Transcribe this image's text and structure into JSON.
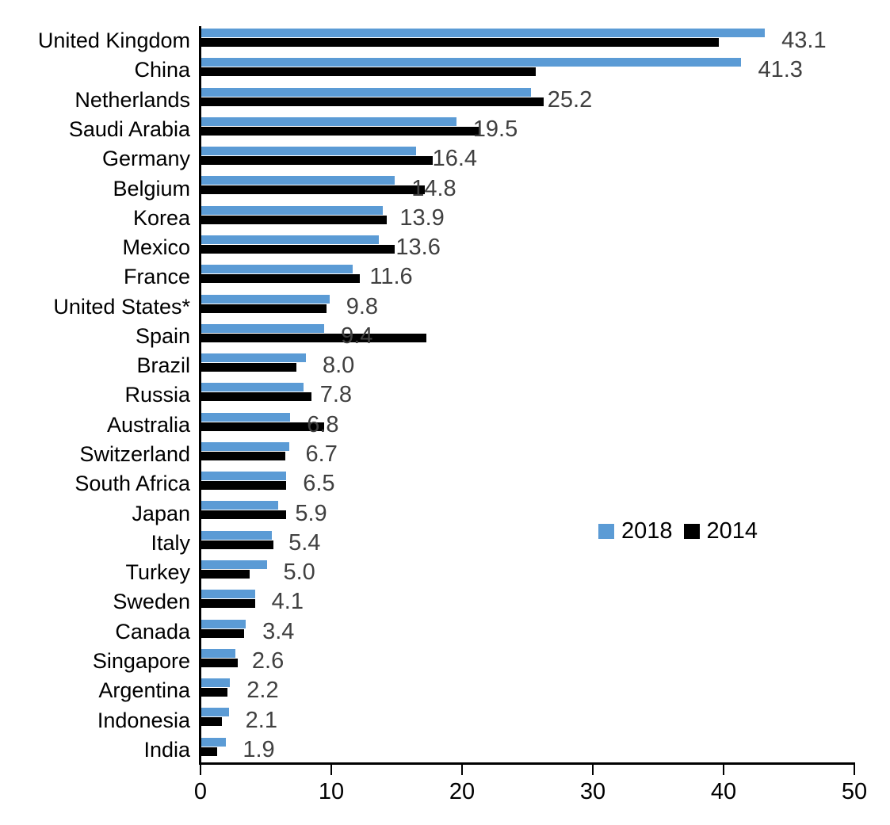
{
  "chart_data": {
    "type": "bar",
    "orientation": "horizontal",
    "title": "",
    "xlabel": "",
    "ylabel": "",
    "xlim": [
      0,
      50
    ],
    "x_ticks": [
      0,
      10,
      20,
      30,
      40,
      50
    ],
    "grid": false,
    "legend_position": "middle-right",
    "categories": [
      "United Kingdom",
      "China",
      "Netherlands",
      "Saudi Arabia",
      "Germany",
      "Belgium",
      "Korea",
      "Mexico",
      "France",
      "United States*",
      "Spain",
      "Brazil",
      "Russia",
      "Australia",
      "Switzerland",
      "South Africa",
      "Japan",
      "Italy",
      "Turkey",
      "Sweden",
      "Canada",
      "Singapore",
      "Argentina",
      "Indonesia",
      "India"
    ],
    "series": [
      {
        "name": "2018",
        "color": "#5B9BD5",
        "values": [
          43.1,
          41.3,
          25.2,
          19.5,
          16.4,
          14.8,
          13.9,
          13.6,
          11.6,
          9.8,
          9.4,
          8.0,
          7.8,
          6.8,
          6.7,
          6.5,
          5.9,
          5.4,
          5.0,
          4.1,
          3.4,
          2.6,
          2.2,
          2.1,
          1.9
        ]
      },
      {
        "name": "2014",
        "color": "#000000",
        "values": [
          39.6,
          25.6,
          26.2,
          21.2,
          17.7,
          17.1,
          14.2,
          14.8,
          12.1,
          9.6,
          17.2,
          7.3,
          8.4,
          9.4,
          6.4,
          6.5,
          6.5,
          5.5,
          3.7,
          4.1,
          3.3,
          2.8,
          2.0,
          1.6,
          1.2
        ]
      }
    ],
    "data_labels": [
      "43.1",
      "41.3",
      "25.2",
      "19.5",
      "16.4",
      "14.8",
      "13.9",
      "13.6",
      "11.6",
      "9.8",
      "9.4",
      "8.0",
      "7.8",
      "6.8",
      "6.7",
      "6.5",
      "5.9",
      "5.4",
      "5.0",
      "4.1",
      "3.4",
      "2.6",
      "2.2",
      "2.1",
      "1.9"
    ],
    "data_label_color": "#404040",
    "data_label_series": "2018"
  },
  "legend": {
    "entries": [
      {
        "label": "2018",
        "color": "#5B9BD5"
      },
      {
        "label": "2014",
        "color": "#000000"
      }
    ]
  }
}
